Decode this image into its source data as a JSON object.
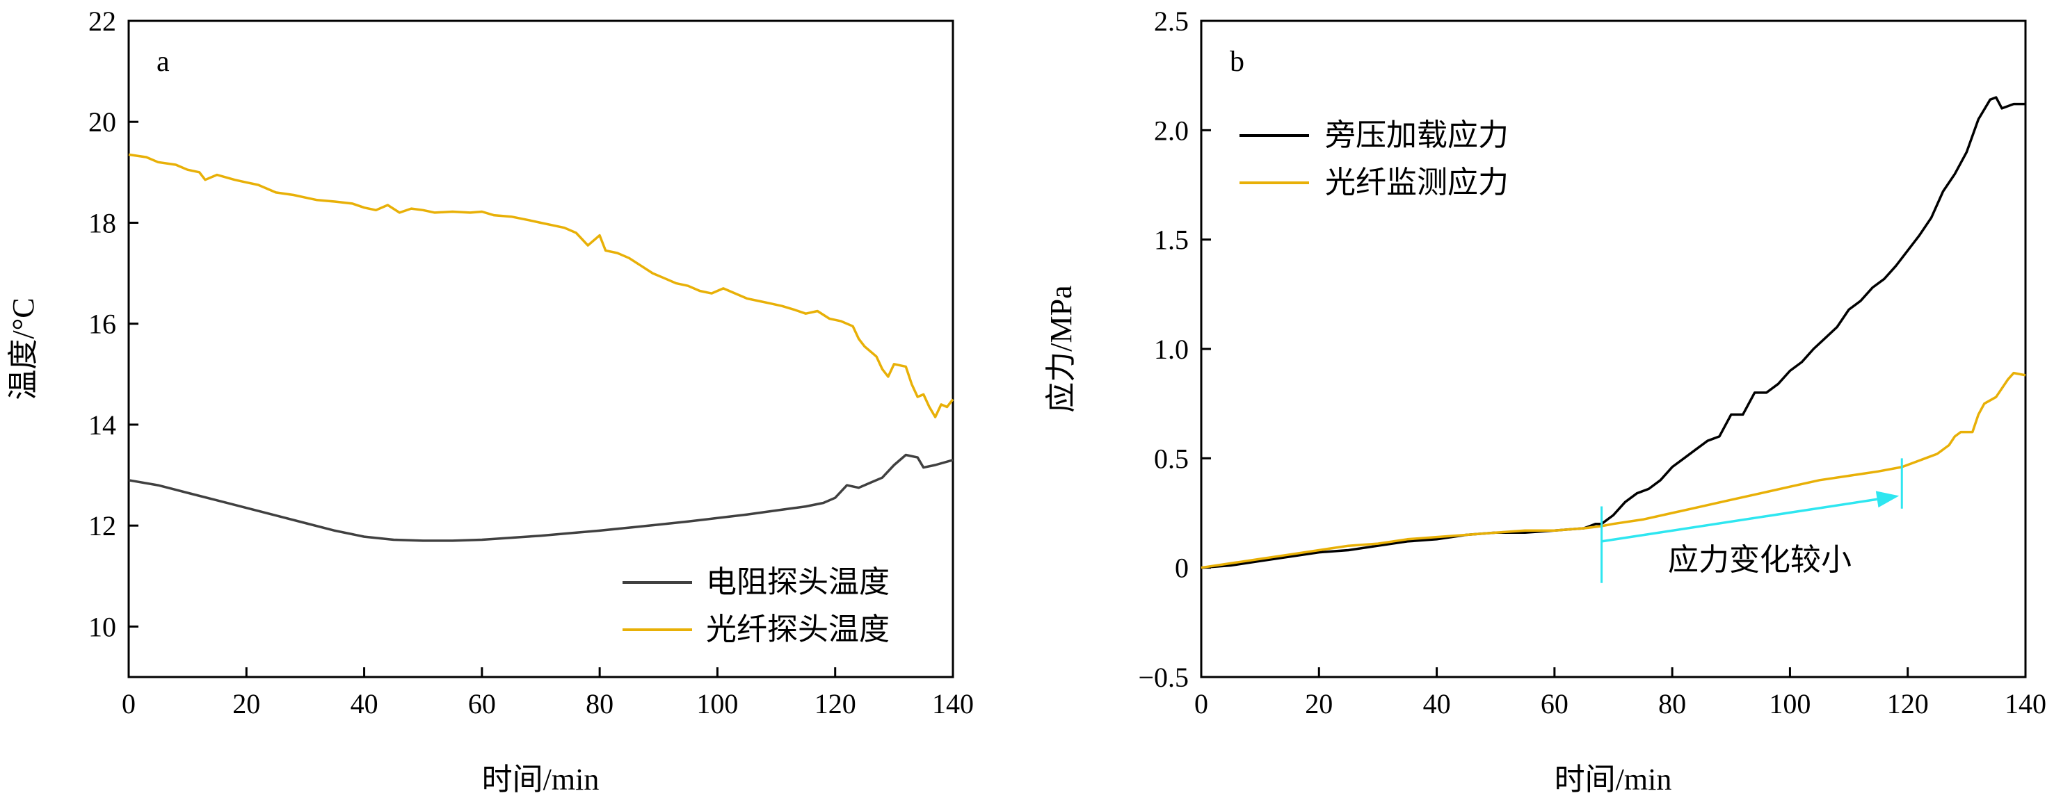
{
  "chart_data": [
    {
      "panel": "a",
      "type": "line",
      "xlabel": "时间/min",
      "ylabel": "温度/°C",
      "xlim": [
        0,
        140
      ],
      "ylim": [
        9,
        22
      ],
      "x_ticks": [
        0,
        20,
        40,
        60,
        80,
        100,
        120,
        140
      ],
      "y_ticks": [
        10,
        12,
        14,
        16,
        18,
        20,
        22
      ],
      "grid": false,
      "legend_position": "bottom-right",
      "series": [
        {
          "name": "电阻探头温度",
          "color": "#404040",
          "points": [
            [
              0,
              12.9
            ],
            [
              5,
              12.8
            ],
            [
              10,
              12.65
            ],
            [
              15,
              12.5
            ],
            [
              20,
              12.35
            ],
            [
              25,
              12.2
            ],
            [
              30,
              12.05
            ],
            [
              35,
              11.9
            ],
            [
              40,
              11.78
            ],
            [
              45,
              11.72
            ],
            [
              50,
              11.7
            ],
            [
              55,
              11.7
            ],
            [
              60,
              11.72
            ],
            [
              65,
              11.76
            ],
            [
              70,
              11.8
            ],
            [
              75,
              11.85
            ],
            [
              80,
              11.9
            ],
            [
              85,
              11.96
            ],
            [
              90,
              12.02
            ],
            [
              95,
              12.08
            ],
            [
              100,
              12.15
            ],
            [
              105,
              12.22
            ],
            [
              110,
              12.3
            ],
            [
              115,
              12.38
            ],
            [
              118,
              12.45
            ],
            [
              120,
              12.55
            ],
            [
              122,
              12.8
            ],
            [
              124,
              12.75
            ],
            [
              126,
              12.85
            ],
            [
              128,
              12.95
            ],
            [
              130,
              13.2
            ],
            [
              132,
              13.4
            ],
            [
              134,
              13.35
            ],
            [
              135,
              13.15
            ],
            [
              137,
              13.2
            ],
            [
              140,
              13.3
            ]
          ]
        },
        {
          "name": "光纤探头温度",
          "color": "#e8b007",
          "points": [
            [
              0,
              19.35
            ],
            [
              3,
              19.3
            ],
            [
              5,
              19.2
            ],
            [
              8,
              19.15
            ],
            [
              10,
              19.05
            ],
            [
              12,
              19.0
            ],
            [
              13,
              18.85
            ],
            [
              15,
              18.95
            ],
            [
              18,
              18.85
            ],
            [
              20,
              18.8
            ],
            [
              22,
              18.75
            ],
            [
              25,
              18.6
            ],
            [
              28,
              18.55
            ],
            [
              30,
              18.5
            ],
            [
              32,
              18.45
            ],
            [
              35,
              18.42
            ],
            [
              38,
              18.38
            ],
            [
              40,
              18.3
            ],
            [
              42,
              18.25
            ],
            [
              44,
              18.35
            ],
            [
              46,
              18.2
            ],
            [
              48,
              18.28
            ],
            [
              50,
              18.25
            ],
            [
              52,
              18.2
            ],
            [
              55,
              18.22
            ],
            [
              58,
              18.2
            ],
            [
              60,
              18.22
            ],
            [
              62,
              18.15
            ],
            [
              65,
              18.12
            ],
            [
              68,
              18.05
            ],
            [
              70,
              18.0
            ],
            [
              72,
              17.95
            ],
            [
              74,
              17.9
            ],
            [
              76,
              17.8
            ],
            [
              78,
              17.55
            ],
            [
              80,
              17.75
            ],
            [
              81,
              17.45
            ],
            [
              83,
              17.4
            ],
            [
              85,
              17.3
            ],
            [
              87,
              17.15
            ],
            [
              89,
              17.0
            ],
            [
              91,
              16.9
            ],
            [
              93,
              16.8
            ],
            [
              95,
              16.75
            ],
            [
              97,
              16.65
            ],
            [
              99,
              16.6
            ],
            [
              101,
              16.7
            ],
            [
              103,
              16.6
            ],
            [
              105,
              16.5
            ],
            [
              107,
              16.45
            ],
            [
              109,
              16.4
            ],
            [
              111,
              16.35
            ],
            [
              113,
              16.28
            ],
            [
              115,
              16.2
            ],
            [
              117,
              16.25
            ],
            [
              119,
              16.1
            ],
            [
              121,
              16.05
            ],
            [
              123,
              15.95
            ],
            [
              124,
              15.7
            ],
            [
              125,
              15.55
            ],
            [
              127,
              15.35
            ],
            [
              128,
              15.1
            ],
            [
              129,
              14.95
            ],
            [
              130,
              15.2
            ],
            [
              132,
              15.15
            ],
            [
              133,
              14.8
            ],
            [
              134,
              14.55
            ],
            [
              135,
              14.6
            ],
            [
              136,
              14.35
            ],
            [
              137,
              14.15
            ],
            [
              138,
              14.4
            ],
            [
              139,
              14.35
            ],
            [
              140,
              14.5
            ]
          ]
        }
      ]
    },
    {
      "panel": "b",
      "type": "line",
      "xlabel": "时间/min",
      "ylabel": "应力/MPa",
      "xlim": [
        0,
        140
      ],
      "ylim": [
        -0.5,
        2.5
      ],
      "x_ticks": [
        0,
        20,
        40,
        60,
        80,
        100,
        120,
        140
      ],
      "y_ticks": [
        -0.5,
        0,
        0.5,
        1.0,
        1.5,
        2.0,
        2.5
      ],
      "y_tick_labels": [
        "−0.5",
        "0",
        "0.5",
        "1.0",
        "1.5",
        "2.0",
        "2.5"
      ],
      "grid": false,
      "legend_position": "top-left",
      "series": [
        {
          "name": "旁压加载应力",
          "color": "#000000",
          "points": [
            [
              0,
              0.0
            ],
            [
              5,
              0.01
            ],
            [
              10,
              0.03
            ],
            [
              15,
              0.05
            ],
            [
              20,
              0.07
            ],
            [
              25,
              0.08
            ],
            [
              30,
              0.1
            ],
            [
              35,
              0.12
            ],
            [
              40,
              0.13
            ],
            [
              45,
              0.15
            ],
            [
              50,
              0.16
            ],
            [
              55,
              0.16
            ],
            [
              60,
              0.17
            ],
            [
              65,
              0.18
            ],
            [
              67,
              0.2
            ],
            [
              68,
              0.2
            ],
            [
              69,
              0.22
            ],
            [
              70,
              0.24
            ],
            [
              72,
              0.3
            ],
            [
              74,
              0.34
            ],
            [
              76,
              0.36
            ],
            [
              78,
              0.4
            ],
            [
              80,
              0.46
            ],
            [
              82,
              0.5
            ],
            [
              84,
              0.54
            ],
            [
              86,
              0.58
            ],
            [
              88,
              0.6
            ],
            [
              90,
              0.7
            ],
            [
              92,
              0.7
            ],
            [
              94,
              0.8
            ],
            [
              96,
              0.8
            ],
            [
              98,
              0.84
            ],
            [
              100,
              0.9
            ],
            [
              102,
              0.94
            ],
            [
              104,
              1.0
            ],
            [
              106,
              1.05
            ],
            [
              108,
              1.1
            ],
            [
              110,
              1.18
            ],
            [
              112,
              1.22
            ],
            [
              114,
              1.28
            ],
            [
              116,
              1.32
            ],
            [
              118,
              1.38
            ],
            [
              120,
              1.45
            ],
            [
              122,
              1.52
            ],
            [
              124,
              1.6
            ],
            [
              126,
              1.72
            ],
            [
              128,
              1.8
            ],
            [
              130,
              1.9
            ],
            [
              132,
              2.05
            ],
            [
              134,
              2.14
            ],
            [
              135,
              2.15
            ],
            [
              136,
              2.1
            ],
            [
              138,
              2.12
            ],
            [
              140,
              2.12
            ]
          ]
        },
        {
          "name": "光纤监测应力",
          "color": "#e8b007",
          "points": [
            [
              0,
              0.0
            ],
            [
              5,
              0.02
            ],
            [
              10,
              0.04
            ],
            [
              15,
              0.06
            ],
            [
              20,
              0.08
            ],
            [
              25,
              0.1
            ],
            [
              30,
              0.11
            ],
            [
              35,
              0.13
            ],
            [
              40,
              0.14
            ],
            [
              45,
              0.15
            ],
            [
              50,
              0.16
            ],
            [
              55,
              0.17
            ],
            [
              60,
              0.17
            ],
            [
              65,
              0.18
            ],
            [
              68,
              0.19
            ],
            [
              70,
              0.2
            ],
            [
              75,
              0.22
            ],
            [
              80,
              0.25
            ],
            [
              85,
              0.28
            ],
            [
              90,
              0.31
            ],
            [
              95,
              0.34
            ],
            [
              100,
              0.37
            ],
            [
              105,
              0.4
            ],
            [
              110,
              0.42
            ],
            [
              115,
              0.44
            ],
            [
              119,
              0.46
            ],
            [
              121,
              0.48
            ],
            [
              123,
              0.5
            ],
            [
              125,
              0.52
            ],
            [
              127,
              0.56
            ],
            [
              128,
              0.6
            ],
            [
              129,
              0.62
            ],
            [
              131,
              0.62
            ],
            [
              132,
              0.7
            ],
            [
              133,
              0.75
            ],
            [
              135,
              0.78
            ],
            [
              137,
              0.86
            ],
            [
              138,
              0.89
            ],
            [
              140,
              0.88
            ]
          ]
        }
      ],
      "annotation": {
        "text": "应力变化较小",
        "x_start": 68,
        "x_end": 119,
        "y_start": 0.12,
        "y_end": 0.33,
        "color": "#2ee6f0"
      }
    }
  ]
}
